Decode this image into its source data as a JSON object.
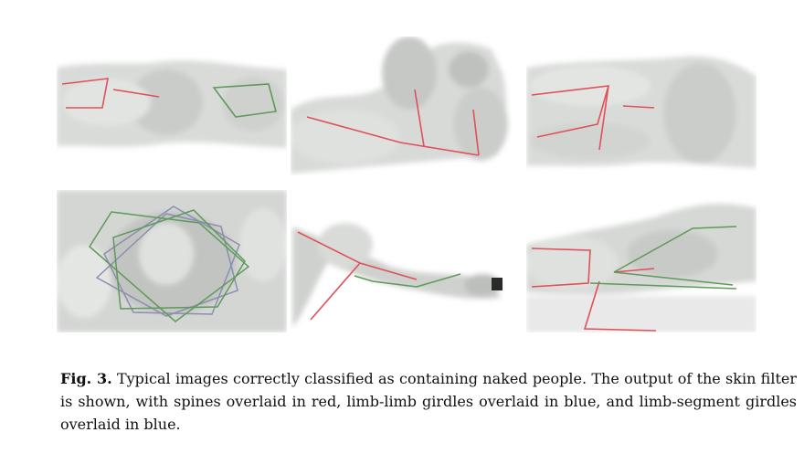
{
  "caption": {
    "label": "Fig. 3.",
    "text": "Typical images correctly classified as containing naked people. The output of the skin filter is shown, with spines overlaid in red, limb-limb girdles overlaid in blue, and limb-segment girdles overlaid in blue."
  },
  "colors": {
    "spine": "#e0505a",
    "limb_limb_girdle": "#8a8fae",
    "limb_segment_girdle": "#5e9a5a",
    "skin": "#d6d8d6",
    "background": "#ffffff"
  }
}
